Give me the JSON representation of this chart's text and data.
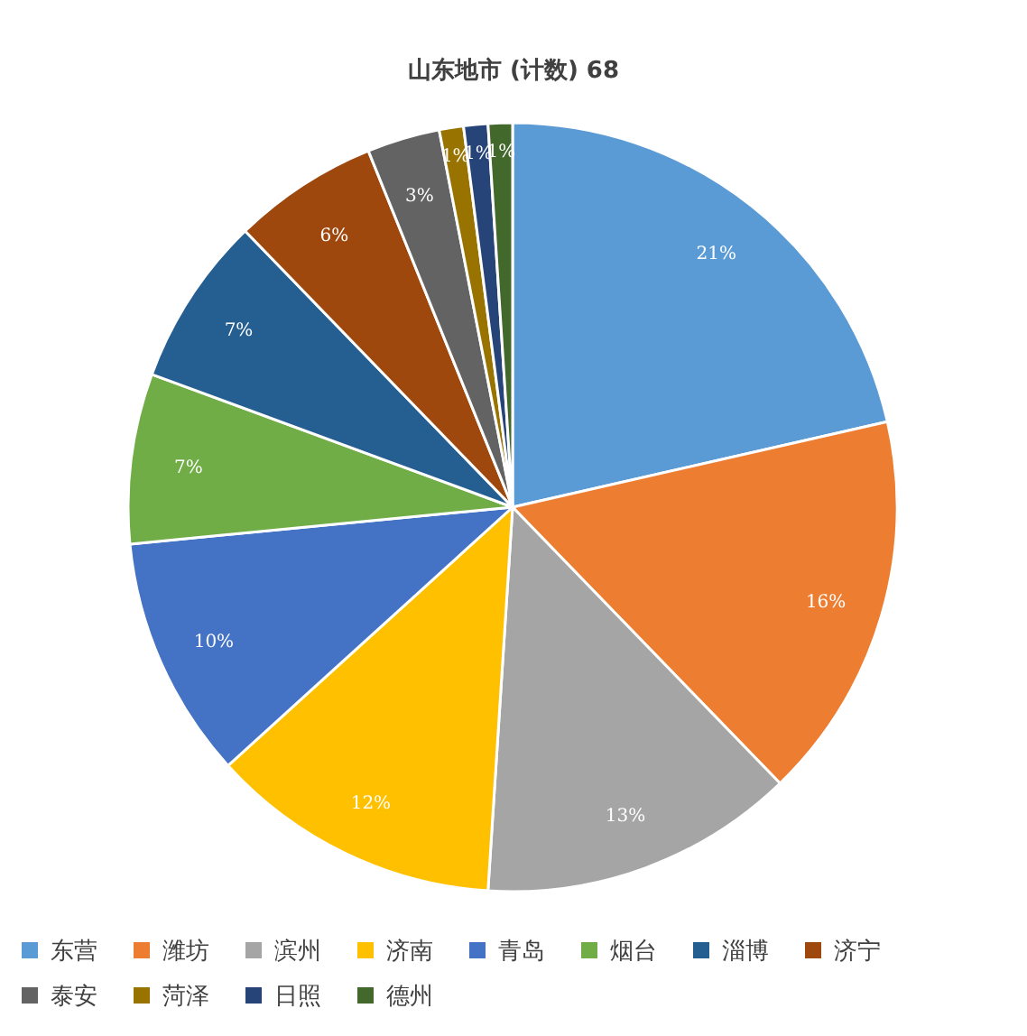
{
  "chart_data": {
    "type": "pie",
    "title": "山东地市 (计数) 68",
    "categories": [
      "东营",
      "潍坊",
      "滨州",
      "济南",
      "青岛",
      "烟台",
      "淄博",
      "济宁",
      "泰安",
      "菏泽",
      "日照",
      "德州"
    ],
    "values": [
      21,
      16,
      13,
      12,
      10,
      7,
      7,
      6,
      3,
      1,
      1,
      1
    ],
    "value_labels": [
      "21%",
      "16%",
      "13%",
      "12%",
      "10%",
      "7%",
      "7%",
      "6%",
      "3%",
      "1%",
      "1%",
      "1%"
    ],
    "colors": [
      "#5b9bd5",
      "#ed7d31",
      "#a5a5a5",
      "#ffc000",
      "#4472c4",
      "#70ad47",
      "#255e91",
      "#9e480e",
      "#636363",
      "#997300",
      "#264478",
      "#43682b"
    ],
    "legend": "bottom"
  }
}
